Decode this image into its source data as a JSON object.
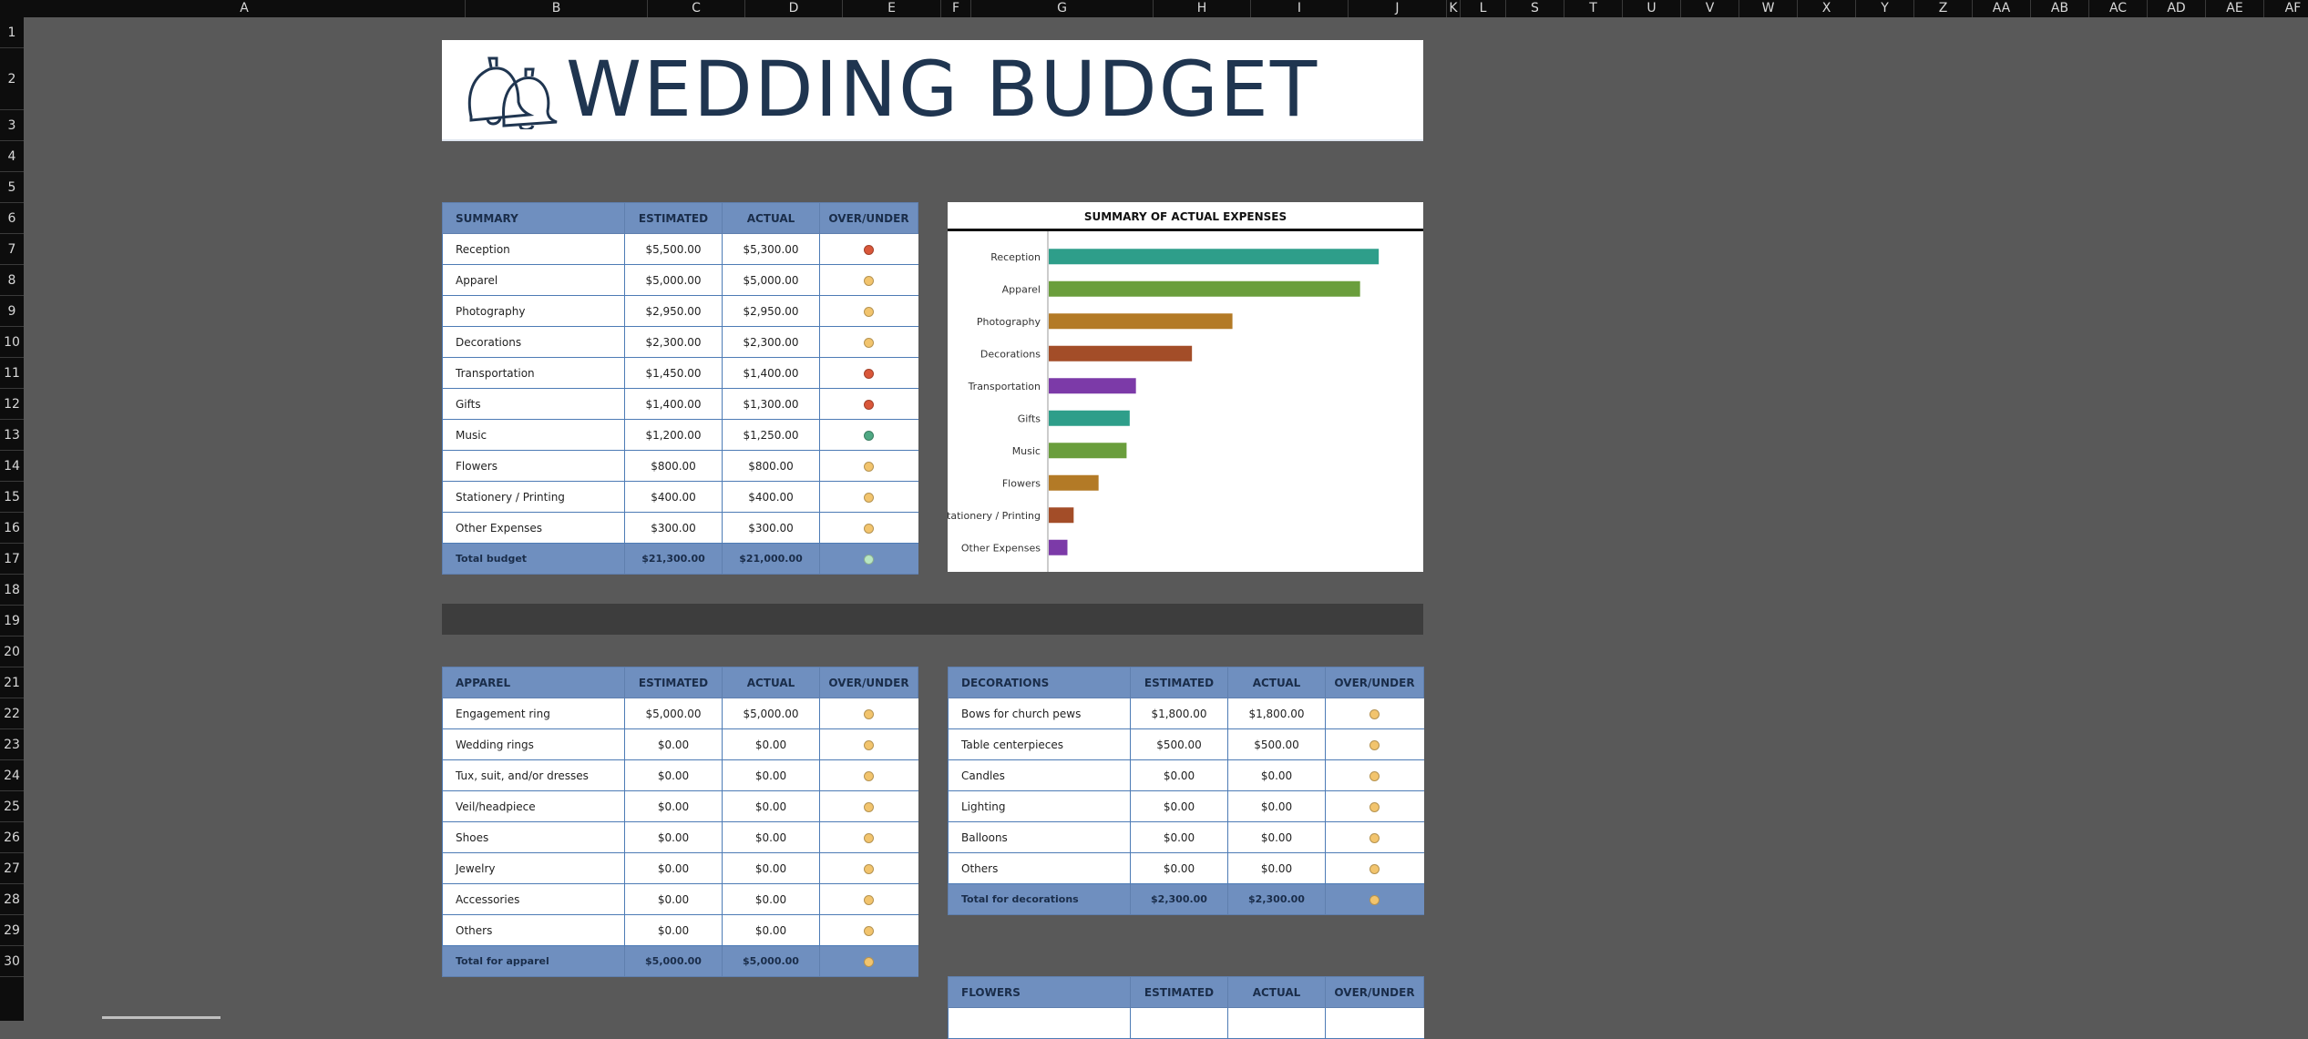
{
  "columns": [
    "A",
    "B",
    "C",
    "D",
    "E",
    "F",
    "G",
    "H",
    "I",
    "J",
    "K",
    "L",
    "S",
    "T",
    "U",
    "V",
    "W",
    "X",
    "Y",
    "Z",
    "AA",
    "AB",
    "AC",
    "AD",
    "AE",
    "AF"
  ],
  "rows": [
    "1",
    "2",
    "3",
    "4",
    "5",
    "6",
    "7",
    "8",
    "9",
    "10",
    "11",
    "12",
    "13",
    "14",
    "15",
    "16",
    "17",
    "18",
    "19",
    "20",
    "21",
    "22",
    "23",
    "24",
    "25",
    "26",
    "27",
    "28",
    "29",
    "30"
  ],
  "banner": {
    "title": "WEDDING BUDGET",
    "icon": "wedding-bells-icon"
  },
  "status_colors": {
    "over": "#d9573a",
    "even": "#f2c46d",
    "under": "#4fa883",
    "total_under": "#b8e6c1"
  },
  "summary": {
    "headers": [
      "SUMMARY",
      "ESTIMATED",
      "ACTUAL",
      "OVER/UNDER"
    ],
    "rows": [
      {
        "name": "Reception",
        "estimated": "$5,500.00",
        "actual": "$5,300.00",
        "status": "over"
      },
      {
        "name": "Apparel",
        "estimated": "$5,000.00",
        "actual": "$5,000.00",
        "status": "even"
      },
      {
        "name": "Photography",
        "estimated": "$2,950.00",
        "actual": "$2,950.00",
        "status": "even"
      },
      {
        "name": "Decorations",
        "estimated": "$2,300.00",
        "actual": "$2,300.00",
        "status": "even"
      },
      {
        "name": "Transportation",
        "estimated": "$1,450.00",
        "actual": "$1,400.00",
        "status": "over"
      },
      {
        "name": "Gifts",
        "estimated": "$1,400.00",
        "actual": "$1,300.00",
        "status": "over"
      },
      {
        "name": "Music",
        "estimated": "$1,200.00",
        "actual": "$1,250.00",
        "status": "under"
      },
      {
        "name": "Flowers",
        "estimated": "$800.00",
        "actual": "$800.00",
        "status": "even"
      },
      {
        "name": "Stationery / Printing",
        "estimated": "$400.00",
        "actual": "$400.00",
        "status": "even"
      },
      {
        "name": "Other Expenses",
        "estimated": "$300.00",
        "actual": "$300.00",
        "status": "even"
      }
    ],
    "total": {
      "name": "Total budget",
      "estimated": "$21,300.00",
      "actual": "$21,000.00",
      "status": "total_under"
    }
  },
  "chart_data": {
    "type": "bar",
    "orientation": "horizontal",
    "title": "SUMMARY OF ACTUAL EXPENSES",
    "categories": [
      "Reception",
      "Apparel",
      "Photography",
      "Decorations",
      "Transportation",
      "Gifts",
      "Music",
      "Flowers",
      "Stationery / Printing",
      "Other Expenses"
    ],
    "values": [
      5300,
      5000,
      2950,
      2300,
      1400,
      1300,
      1250,
      800,
      400,
      300
    ],
    "colors": [
      "#2e9e8a",
      "#6a9e3c",
      "#b37a26",
      "#a34d28",
      "#7c3aa8",
      "#2e9e8a",
      "#6a9e3c",
      "#b37a26",
      "#a34d28",
      "#7c3aa8"
    ],
    "xlim": [
      0,
      6000
    ],
    "grid": false,
    "legend": "none"
  },
  "apparel": {
    "headers": [
      "APPAREL",
      "ESTIMATED",
      "ACTUAL",
      "OVER/UNDER"
    ],
    "rows": [
      {
        "name": "Engagement ring",
        "estimated": "$5,000.00",
        "actual": "$5,000.00",
        "status": "even"
      },
      {
        "name": "Wedding rings",
        "estimated": "$0.00",
        "actual": "$0.00",
        "status": "even"
      },
      {
        "name": "Tux, suit, and/or dresses",
        "estimated": "$0.00",
        "actual": "$0.00",
        "status": "even"
      },
      {
        "name": "Veil/headpiece",
        "estimated": "$0.00",
        "actual": "$0.00",
        "status": "even"
      },
      {
        "name": "Shoes",
        "estimated": "$0.00",
        "actual": "$0.00",
        "status": "even"
      },
      {
        "name": "Jewelry",
        "estimated": "$0.00",
        "actual": "$0.00",
        "status": "even"
      },
      {
        "name": "Accessories",
        "estimated": "$0.00",
        "actual": "$0.00",
        "status": "even"
      },
      {
        "name": "Others",
        "estimated": "$0.00",
        "actual": "$0.00",
        "status": "even"
      }
    ],
    "total": {
      "name": "Total for apparel",
      "estimated": "$5,000.00",
      "actual": "$5,000.00",
      "status": "even"
    }
  },
  "decorations": {
    "headers": [
      "DECORATIONS",
      "ESTIMATED",
      "ACTUAL",
      "OVER/UNDER"
    ],
    "rows": [
      {
        "name": "Bows for church pews",
        "estimated": "$1,800.00",
        "actual": "$1,800.00",
        "status": "even"
      },
      {
        "name": "Table centerpieces",
        "estimated": "$500.00",
        "actual": "$500.00",
        "status": "even"
      },
      {
        "name": "Candles",
        "estimated": "$0.00",
        "actual": "$0.00",
        "status": "even"
      },
      {
        "name": "Lighting",
        "estimated": "$0.00",
        "actual": "$0.00",
        "status": "even"
      },
      {
        "name": "Balloons",
        "estimated": "$0.00",
        "actual": "$0.00",
        "status": "even"
      },
      {
        "name": "Others",
        "estimated": "$0.00",
        "actual": "$0.00",
        "status": "even"
      }
    ],
    "total": {
      "name": "Total for decorations",
      "estimated": "$2,300.00",
      "actual": "$2,300.00",
      "status": "even"
    }
  },
  "flowers": {
    "headers": [
      "FLOWERS",
      "ESTIMATED",
      "ACTUAL",
      "OVER/UNDER"
    ]
  }
}
